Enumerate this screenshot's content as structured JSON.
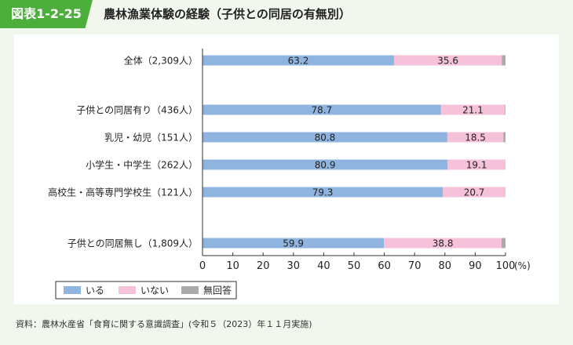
{
  "header": {
    "figure_label": "図表1-2-25",
    "title": "農林漁業体験の経験（子供との同居の有無別）"
  },
  "colors": {
    "iru": "#8fb4df",
    "inai": "#f5c2d9",
    "mukaito": "#aaaaaa",
    "accent": "#4caf3c"
  },
  "chart_data": {
    "type": "bar",
    "orientation": "horizontal",
    "stacked": true,
    "categories": [
      "全体（2,309人）",
      "子供との同居有り（436人）",
      "乳児・幼児（151人）",
      "小学生・中学生（262人）",
      "高校生・高等専門学校生（121人）",
      "子供との同居無し（1,809人）"
    ],
    "series": [
      {
        "name": "いる",
        "values": [
          63.2,
          78.7,
          80.8,
          80.9,
          79.3,
          59.9
        ]
      },
      {
        "name": "いない",
        "values": [
          35.6,
          21.1,
          18.5,
          19.1,
          20.7,
          38.8
        ]
      },
      {
        "name": "無回答",
        "values": [
          1.2,
          0.2,
          0.7,
          0.0,
          0.0,
          1.3
        ]
      }
    ],
    "xlim": [
      0,
      100
    ],
    "xticks": [
      0,
      10,
      20,
      30,
      40,
      50,
      60,
      70,
      80,
      90,
      100
    ],
    "xunit": "(%)",
    "legend_position": "bottom-left"
  },
  "source": "資料：農林水産省「食育に関する意識調査」(令和５（2023）年１１月実施)"
}
